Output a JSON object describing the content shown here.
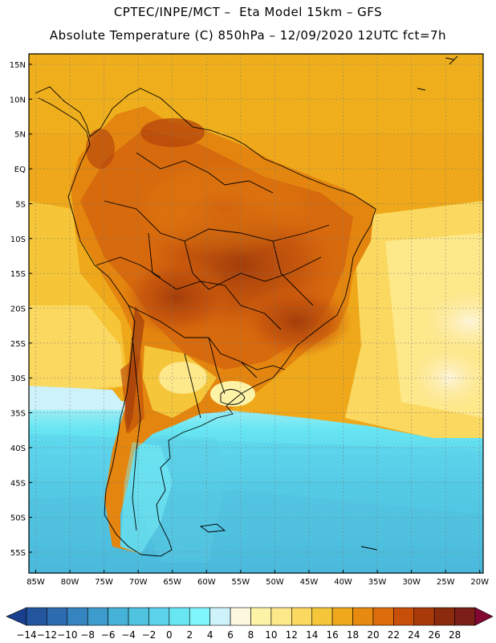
{
  "header": {
    "line1": "CPTEC/INPE/MCT –  Eta Model 15km – GFS",
    "line2": "Absolute Temperature (C) 850hPa – 12/09/2020 12UTC fct=7h"
  },
  "map": {
    "lat_labels": [
      "15N",
      "10N",
      "5N",
      "EQ",
      "5S",
      "10S",
      "15S",
      "20S",
      "25S",
      "30S",
      "35S",
      "40S",
      "45S",
      "50S",
      "55S"
    ],
    "lon_labels": [
      "85W",
      "80W",
      "75W",
      "70W",
      "65W",
      "60W",
      "55W",
      "50W",
      "45W",
      "40W",
      "35W",
      "30W",
      "25W",
      "20W"
    ],
    "lat_values": [
      15,
      10,
      5,
      0,
      -5,
      -10,
      -15,
      -20,
      -25,
      -30,
      -35,
      -40,
      -45,
      -50,
      -55
    ],
    "lon_values": [
      -85,
      -80,
      -75,
      -70,
      -65,
      -60,
      -55,
      -50,
      -45,
      -40,
      -35,
      -30,
      -25,
      -20
    ],
    "lat_range": [
      -58,
      16.5
    ],
    "lon_range": [
      -86,
      -19.5
    ],
    "gridlines": true
  },
  "colorbar": {
    "labels": [
      "-14",
      "-12",
      "-10",
      "-8",
      "-6",
      "-4",
      "-2",
      "0",
      "2",
      "4",
      "6",
      "8",
      "10",
      "12",
      "14",
      "16",
      "18",
      "20",
      "22",
      "24",
      "26",
      "28"
    ],
    "colors": [
      "#1a3f8f",
      "#24569f",
      "#2d6bb0",
      "#3584bf",
      "#3e9ccc",
      "#47b2d8",
      "#4fc3e0",
      "#5cd3ea",
      "#68e6f2",
      "#7ff6fb",
      "#cdf2f9",
      "#fdf7e0",
      "#fdf3a6",
      "#fde88a",
      "#fbd860",
      "#f5c63a",
      "#efa81b",
      "#e68a10",
      "#dc6c0c",
      "#c84f0a",
      "#a93a0a",
      "#8b2a0c",
      "#7b1f18",
      "#820832"
    ]
  }
}
